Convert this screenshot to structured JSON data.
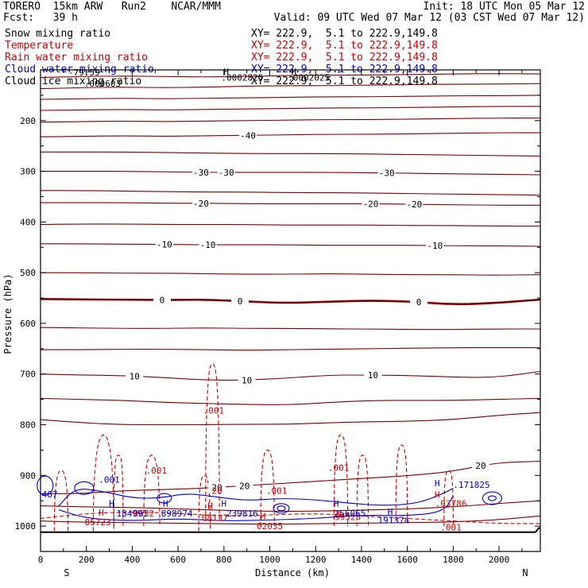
{
  "header": {
    "line1_left": "TORERO  15km ARW   Run2    NCAR/MMM",
    "line1_right": "Init: 18 UTC Mon 05 Mar 12",
    "line2_left": "Fcst:   39 h",
    "line2_right": "Valid: 09 UTC Wed 07 Mar 12 (03 CST Wed 07 Mar 12)"
  },
  "fields": [
    {
      "name": "Snow mixing ratio",
      "xy": "XY= 222.9,  5.1 to 222.9,149.8",
      "color": "#000000"
    },
    {
      "name": "Temperature",
      "xy": "XY= 222.9,  5.1 to 222.9,149.8",
      "color": "#cc0000"
    },
    {
      "name": "Rain water mixing ratio",
      "xy": "XY= 222.9,  5.1 to 222.9,149.8",
      "color": "#cc0000"
    },
    {
      "name": "Cloud water mixing ratio",
      "xy": "XY= 222.9,  5.1 to 222.9,149.8",
      "color": "#0000cc"
    },
    {
      "name": "Cloud ice mixing ratio",
      "xy": "XY= 222.9,  5.1 to 222.9,149.8",
      "color": "#000000"
    }
  ],
  "chart_data": {
    "type": "line",
    "xlabel": "Distance (km)",
    "ylabel": "Pressure (hPa)",
    "x_ticks": [
      0,
      200,
      400,
      600,
      800,
      1000,
      1200,
      1400,
      1600,
      1800,
      2000
    ],
    "y_ticks": [
      200,
      300,
      400,
      500,
      600,
      700,
      800,
      900,
      1000
    ],
    "xlim": [
      0,
      2180
    ],
    "ylim": [
      1050,
      100
    ],
    "left_end_label": "S",
    "right_end_label": "N",
    "temperature_color": "#7a0000",
    "isotherms": [
      {
        "temp": -70,
        "p": [
          115,
          113,
          112,
          113,
          114,
          113,
          111,
          110,
          110,
          109,
          108,
          107,
          108
        ],
        "labels": []
      },
      {
        "temp": -60,
        "p": [
          137,
          135,
          134,
          135,
          134,
          132,
          131,
          131,
          130,
          129,
          128,
          128,
          127
        ],
        "labels": []
      },
      {
        "temp": -55,
        "p": [
          158,
          157,
          156,
          157,
          156,
          155,
          154,
          153,
          153,
          152,
          151,
          151,
          150
        ],
        "labels": []
      },
      {
        "temp": -50,
        "p": [
          180,
          179,
          178,
          179,
          178,
          177,
          176,
          175,
          175,
          174,
          173,
          172,
          172
        ],
        "labels": []
      },
      {
        "temp": -45,
        "p": [
          203,
          202,
          201,
          202,
          201,
          200,
          199,
          198,
          198,
          197,
          196,
          195,
          195
        ],
        "labels": []
      },
      {
        "temp": -40,
        "p": [
          232,
          231,
          230,
          231,
          230,
          229,
          228,
          227,
          227,
          226,
          225,
          224,
          224
        ],
        "labels": [
          {
            "x": 905,
            "text": "-40"
          }
        ]
      },
      {
        "temp": -35,
        "p": [
          262,
          262,
          262,
          263,
          264,
          265,
          265,
          265,
          266,
          267,
          268,
          269,
          270
        ],
        "labels": []
      },
      {
        "temp": -30,
        "p": [
          300,
          300,
          300,
          301,
          302,
          302,
          302,
          302,
          303,
          304,
          305,
          306,
          307
        ],
        "labels": [
          {
            "x": 700,
            "text": "-30"
          },
          {
            "x": 810,
            "text": "-30"
          },
          {
            "x": 1510,
            "text": "-30"
          }
        ]
      },
      {
        "temp": -25,
        "p": [
          338,
          338,
          339,
          340,
          341,
          341,
          342,
          342,
          343,
          344,
          345,
          346,
          347
        ],
        "labels": []
      },
      {
        "temp": -20,
        "p": [
          362,
          362,
          362,
          363,
          363,
          364,
          364,
          364,
          364,
          365,
          366,
          367,
          367
        ],
        "labels": [
          {
            "x": 700,
            "text": "-20"
          },
          {
            "x": 1440,
            "text": "-20"
          },
          {
            "x": 1630,
            "text": "-20"
          }
        ]
      },
      {
        "temp": -15,
        "p": [
          405,
          404,
          404,
          405,
          405,
          405,
          406,
          406,
          406,
          407,
          407,
          408,
          408
        ],
        "labels": []
      },
      {
        "temp": -10,
        "p": [
          443,
          443,
          444,
          444,
          445,
          445,
          445,
          446,
          446,
          446,
          447,
          447,
          448
        ],
        "labels": [
          {
            "x": 540,
            "text": "-10"
          },
          {
            "x": 730,
            "text": "-10"
          },
          {
            "x": 1720,
            "text": "-10"
          }
        ]
      },
      {
        "temp": -5,
        "p": [
          500,
          500,
          501,
          501,
          502,
          503,
          503,
          502,
          503,
          504,
          504,
          505,
          504
        ],
        "labels": []
      },
      {
        "temp": 0,
        "p": [
          552,
          553,
          553,
          554,
          553,
          557,
          560,
          557,
          555,
          557,
          563,
          560,
          553
        ],
        "labels": [
          {
            "x": 530,
            "text": "0"
          },
          {
            "x": 870,
            "text": "0"
          },
          {
            "x": 1650,
            "text": "0"
          }
        ],
        "bold": true
      },
      {
        "temp": 5,
        "p": [
          608,
          609,
          610,
          610,
          609,
          610,
          610,
          611,
          611,
          612,
          612,
          611,
          611
        ],
        "labels": []
      },
      {
        "temp": 10,
        "p": [
          652,
          652,
          651,
          651,
          652,
          653,
          652,
          651,
          650,
          649,
          648,
          648,
          648
        ],
        "labels": []
      },
      {
        "temp": 10,
        "p": [
          700,
          702,
          703,
          707,
          712,
          712,
          708,
          702,
          702,
          703,
          706,
          707,
          695
        ],
        "labels": [
          {
            "x": 410,
            "text": "10"
          },
          {
            "x": 900,
            "text": "10"
          },
          {
            "x": 1450,
            "text": "10"
          }
        ]
      },
      {
        "temp": 15,
        "p": [
          748,
          750,
          752,
          756,
          758,
          760,
          761,
          756,
          752,
          752,
          752,
          750,
          748
        ],
        "labels": []
      },
      {
        "temp": 20,
        "p": [
          790,
          796,
          800,
          800,
          800,
          799,
          799,
          796,
          794,
          793,
          790,
          782,
          776
        ],
        "labels": []
      },
      {
        "temp": 20,
        "p": [
          936,
          936,
          930,
          928,
          925,
          920,
          915,
          910,
          905,
          900,
          892,
          875,
          872
        ],
        "labels": [
          {
            "x": 770,
            "text": "20"
          },
          {
            "x": 890,
            "text": "20"
          },
          {
            "x": 1920,
            "text": "20"
          }
        ]
      },
      {
        "temp": 25,
        "p": [
          960,
          962,
          963,
          965,
          968,
          970,
          971,
          970,
          968,
          966,
          962,
          956,
          950
        ],
        "labels": []
      },
      {
        "temp": 25,
        "p": [
          990,
          992,
          993,
          994,
          995,
          996,
          996,
          995,
          994,
          993,
          992,
          988,
          980
        ],
        "labels": []
      }
    ],
    "isotherm_x": [
      0,
      180,
      360,
      540,
      720,
      900,
      1080,
      1260,
      1440,
      1620,
      1800,
      1980,
      2180
    ],
    "rain_color": "#cc0000",
    "rain_value_labels": [
      {
        "x": 755,
        "p": 772,
        "text": ".001"
      },
      {
        "x": 505,
        "p": 890,
        "text": ".001"
      },
      {
        "x": 1030,
        "p": 930,
        "text": ".001"
      },
      {
        "x": 1300,
        "p": 885,
        "text": ".001"
      },
      {
        "x": 1790,
        "p": 1002,
        "text": ".001"
      },
      {
        "x": 770,
        "p": 930,
        "text": "20"
      },
      {
        "x": 250,
        "p": 992,
        "text": "85723"
      },
      {
        "x": 450,
        "p": 975,
        "text": "0632"
      },
      {
        "x": 760,
        "p": 983,
        "text": "08137"
      },
      {
        "x": 1000,
        "p": 1000,
        "text": "02035"
      },
      {
        "x": 1340,
        "p": 982,
        "text": "99525"
      },
      {
        "x": 1790,
        "p": 955,
        "text": ".03786"
      }
    ],
    "rain_H_markers": [
      {
        "x": 265,
        "p": 973
      },
      {
        "x": 740,
        "p": 960
      },
      {
        "x": 970,
        "p": 980
      },
      {
        "x": 1300,
        "p": 975
      },
      {
        "x": 1730,
        "p": 938
      }
    ],
    "cloud_water_color": "#0000cc",
    "cloud_value_labels": [
      {
        "x": 300,
        "p": 908,
        "text": ".001"
      },
      {
        "x": 400,
        "p": 975,
        "text": "184991"
      },
      {
        "x": 595,
        "p": 975,
        "text": "898974"
      },
      {
        "x": 880,
        "p": 975,
        "text": "239816"
      },
      {
        "x": 1350,
        "p": 975,
        "text": "256065"
      },
      {
        "x": 1540,
        "p": 988,
        "text": "191374"
      },
      {
        "x": 1880,
        "p": 918,
        "text": ".171825"
      },
      {
        "x": 40,
        "p": 937,
        "text": "487"
      }
    ],
    "cloud_H_markers": [
      {
        "x": 310,
        "p": 955
      },
      {
        "x": 545,
        "p": 955
      },
      {
        "x": 800,
        "p": 955
      },
      {
        "x": 1290,
        "p": 955
      },
      {
        "x": 1525,
        "p": 972
      },
      {
        "x": 1730,
        "p": 915
      }
    ],
    "snow_labels": [
      {
        "x": 270,
        "p": 127,
        "text": ".000603"
      },
      {
        "x": 880,
        "p": 115,
        "text": ".0002825"
      },
      {
        "x": 1170,
        "p": 115,
        "text": ".0002025"
      }
    ],
    "snow_H_markers": [
      {
        "x": 810,
        "p": 103
      },
      {
        "x": 1105,
        "p": 103
      }
    ],
    "top_partial_labels": [
      {
        "x": 190,
        "p": 105,
        "text": "-79.59"
      }
    ]
  }
}
